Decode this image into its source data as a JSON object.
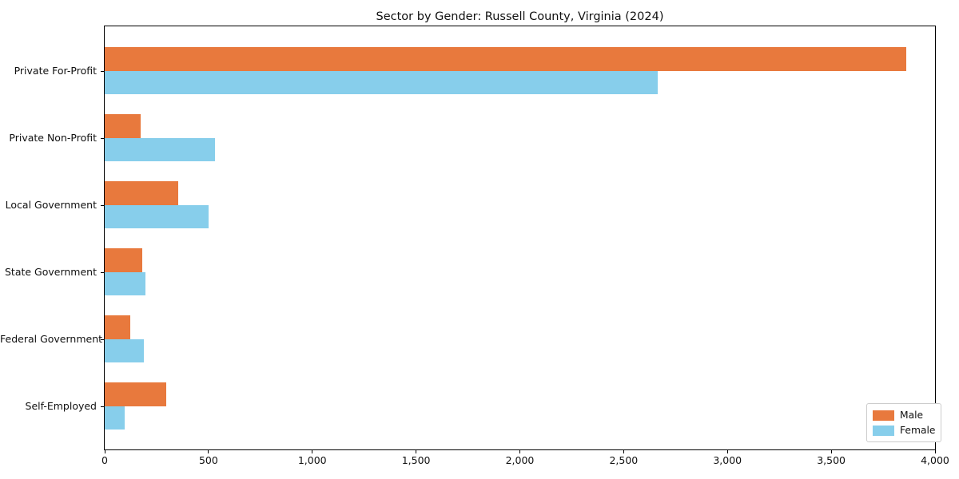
{
  "window": {
    "background_color": "#ffffff",
    "text_color": "#111111",
    "spine_color": "#000000"
  },
  "chart_data": {
    "type": "bar",
    "orientation": "horizontal",
    "title": "Sector by Gender: Russell County, Virginia (2024)",
    "xlabel": "",
    "ylabel": "",
    "categories": [
      "Private For-Profit",
      "Private Non-Profit",
      "Local Government",
      "State Government",
      "Federal Government",
      "Self-Employed"
    ],
    "series": [
      {
        "name": "Male",
        "color": "#e8793d",
        "values": [
          3860,
          175,
          355,
          180,
          125,
          295
        ]
      },
      {
        "name": "Female",
        "color": "#87ceeb",
        "values": [
          2665,
          530,
          500,
          195,
          190,
          95
        ]
      }
    ],
    "xlim": [
      0,
      4000
    ],
    "xticks": [
      {
        "value": 0,
        "label": "0"
      },
      {
        "value": 500,
        "label": "500"
      },
      {
        "value": 1000,
        "label": "1,000"
      },
      {
        "value": 1500,
        "label": "1,500"
      },
      {
        "value": 2000,
        "label": "2,000"
      },
      {
        "value": 2500,
        "label": "2,500"
      },
      {
        "value": 3000,
        "label": "3,000"
      },
      {
        "value": 3500,
        "label": "3,500"
      },
      {
        "value": 4000,
        "label": "4,000"
      }
    ],
    "grid": false,
    "legend": {
      "position": "lower right"
    }
  }
}
